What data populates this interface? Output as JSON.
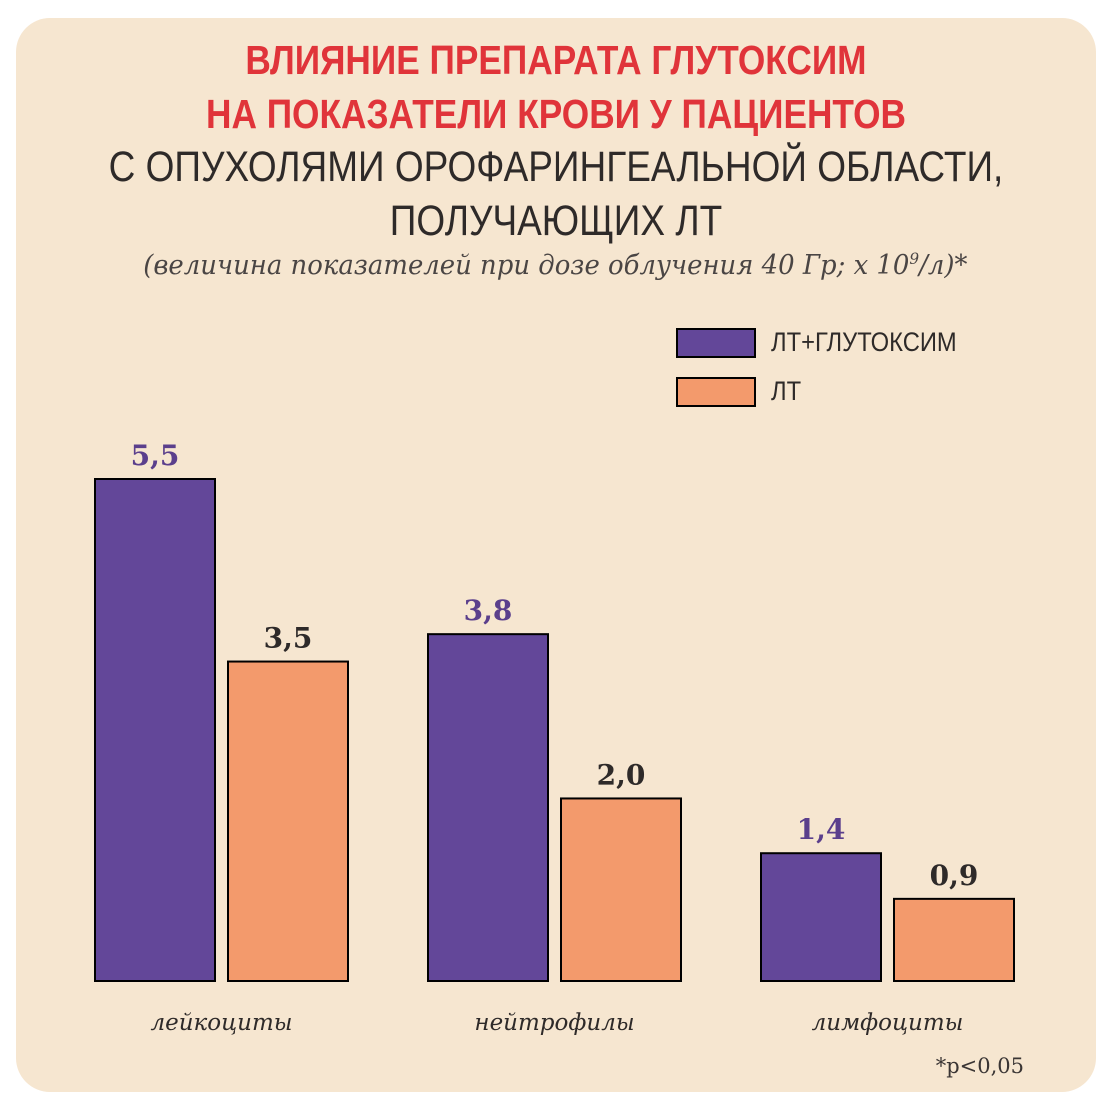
{
  "title": {
    "line1": "ВЛИЯНИЕ ПРЕПАРАТА ГЛУТОКСИМ",
    "line2": "НА ПОКАЗАТЕЛИ КРОВИ У ПАЦИЕНТОВ",
    "line3": "С ОПУХОЛЯМИ ОРОФАРИНГЕАЛЬНОЙ ОБЛАСТИ,",
    "line4": "ПОЛУЧАЮЩИХ ЛТ",
    "subtitle_before": "(величина показателей при дозе облучения 40 Гр; х 10",
    "subtitle_sup": "9",
    "subtitle_after": "/л)*"
  },
  "footnote": "*p<0,05",
  "colors": {
    "background": "#f6e6d0",
    "title_accent": "#e0343a",
    "series_glutoxim": "#634799",
    "series_lt": "#f39a6c",
    "value_glutoxim": "#5b3f8c",
    "value_lt": "#2e2a29"
  },
  "chart_data": {
    "type": "bar",
    "categories": [
      "лейкоциты",
      "нейтрофилы",
      "лимфоциты"
    ],
    "series": [
      {
        "name": "ЛТ+ГЛУТОКСИМ",
        "values": [
          5.5,
          3.8,
          1.4
        ],
        "labels": [
          "5,5",
          "3,8",
          "1,4"
        ],
        "color": "#634799",
        "label_color": "#5b3f8c"
      },
      {
        "name": "ЛТ",
        "values": [
          3.5,
          2.0,
          0.9
        ],
        "labels": [
          "3,5",
          "2,0",
          "0,9"
        ],
        "color": "#f39a6c",
        "label_color": "#2e2a29"
      }
    ],
    "ylim": [
      0,
      5.5
    ],
    "legend": "top-right",
    "grid": false,
    "xlabel": "",
    "ylabel": ""
  }
}
